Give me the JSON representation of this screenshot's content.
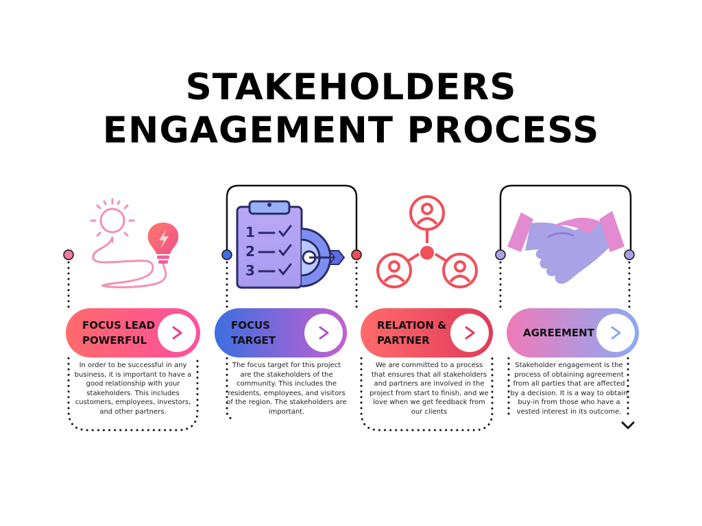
{
  "title": {
    "line1": "STAKEHOLDERS",
    "line2": "ENGAGEMENT PROCESS"
  },
  "steps": [
    {
      "label": "FOCUS LEAD\nPOWERFUL",
      "icon": "lightbulb-sun-icon",
      "arrow": ">",
      "colors": [
        "#ff6a6a",
        "#ff4fa0"
      ],
      "description": "In order to be successful in any business, it is important to have a good relationship with your stakeholders. This includes customers, employees, investors, and other partners."
    },
    {
      "label": "FOCUS\nTARGET",
      "icon": "clipboard-target-icon",
      "arrow": ">",
      "colors": [
        "#3d6fe0",
        "#c45fd0"
      ],
      "description": "The focus target for this project are the stakeholders of the community. This includes the residents, employees, and visitors of the region. The stakeholders are important."
    },
    {
      "label": "RELATION &\nPARTNER",
      "icon": "network-people-icon",
      "arrow": ">",
      "colors": [
        "#ff6b6b",
        "#e03a5a"
      ],
      "description": "We are committed to a process that ensures that all stakeholders and partners are involved in the project from start to finish, and we love when we get feedback from our clients"
    },
    {
      "label": "AGREEMENT",
      "icon": "handshake-icon",
      "arrow": ">",
      "colors": [
        "#f07ab8",
        "#8aaaf5"
      ],
      "description": "Stakeholder engagement is the process of obtaining agreement from all parties that are affected by a decision. It is a way to obtain buy-in from those who have a vested interest in its outcome."
    }
  ]
}
